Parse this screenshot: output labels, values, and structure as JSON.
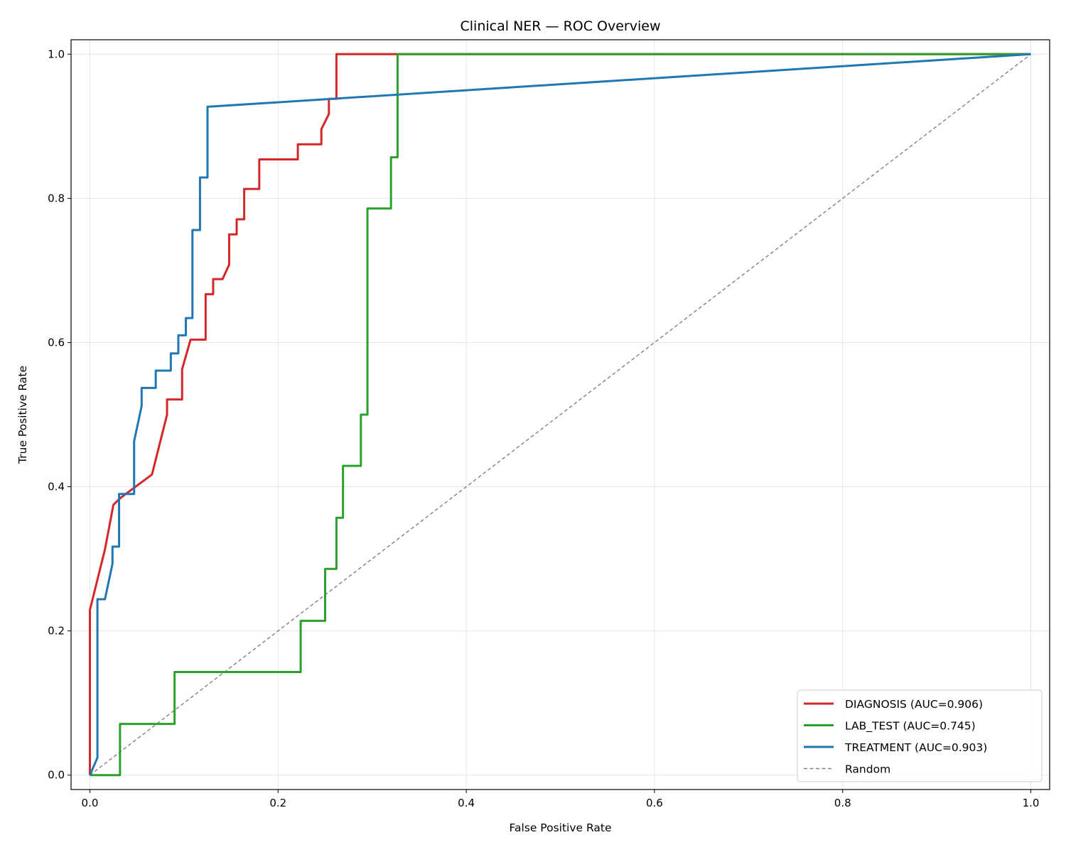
{
  "chart_data": {
    "type": "line",
    "title": "Clinical NER — ROC Overview",
    "xlabel": "False Positive Rate",
    "ylabel": "True Positive Rate",
    "xlim": [
      -0.02,
      1.02
    ],
    "ylim": [
      -0.02,
      1.02
    ],
    "xticks": [
      0.0,
      0.2,
      0.4,
      0.6,
      0.8,
      1.0
    ],
    "yticks": [
      0.0,
      0.2,
      0.4,
      0.6,
      0.8,
      1.0
    ],
    "tick_labels": [
      "0.0",
      "0.2",
      "0.4",
      "0.6",
      "0.8",
      "1.0"
    ],
    "grid": true,
    "legend_position": "lower-right",
    "series": [
      {
        "name": "DIAGNOSIS (AUC=0.906)",
        "color": "#d62728",
        "x": [
          0.0,
          0.0,
          0.016,
          0.025,
          0.033,
          0.066,
          0.082,
          0.082,
          0.098,
          0.098,
          0.107,
          0.123,
          0.123,
          0.131,
          0.131,
          0.141,
          0.148,
          0.148,
          0.156,
          0.156,
          0.164,
          0.164,
          0.18,
          0.18,
          0.221,
          0.221,
          0.246,
          0.246,
          0.254,
          0.254,
          0.262,
          0.262,
          1.0
        ],
        "y": [
          0.0,
          0.229,
          0.313,
          0.375,
          0.385,
          0.417,
          0.5,
          0.521,
          0.521,
          0.563,
          0.604,
          0.604,
          0.667,
          0.667,
          0.688,
          0.688,
          0.708,
          0.75,
          0.75,
          0.771,
          0.771,
          0.813,
          0.813,
          0.854,
          0.854,
          0.875,
          0.875,
          0.896,
          0.917,
          0.938,
          0.938,
          1.0,
          1.0
        ]
      },
      {
        "name": "LAB_TEST (AUC=0.745)",
        "color": "#2ca02c",
        "x": [
          0.0,
          0.032,
          0.032,
          0.09,
          0.09,
          0.224,
          0.224,
          0.25,
          0.25,
          0.262,
          0.262,
          0.269,
          0.269,
          0.288,
          0.288,
          0.295,
          0.295,
          0.32,
          0.32,
          0.327,
          0.327,
          1.0
        ],
        "y": [
          0.0,
          0.0,
          0.071,
          0.071,
          0.143,
          0.143,
          0.214,
          0.214,
          0.286,
          0.286,
          0.357,
          0.357,
          0.429,
          0.429,
          0.5,
          0.5,
          0.786,
          0.786,
          0.857,
          0.857,
          1.0,
          1.0
        ]
      },
      {
        "name": "TREATMENT (AUC=0.903)",
        "color": "#1f77b4",
        "x": [
          0.0,
          0.008,
          0.008,
          0.016,
          0.024,
          0.024,
          0.031,
          0.031,
          0.047,
          0.047,
          0.055,
          0.055,
          0.07,
          0.07,
          0.086,
          0.086,
          0.094,
          0.094,
          0.102,
          0.102,
          0.109,
          0.109,
          0.117,
          0.117,
          0.125,
          0.125,
          1.0
        ],
        "y": [
          0.0,
          0.024,
          0.244,
          0.244,
          0.293,
          0.317,
          0.317,
          0.39,
          0.39,
          0.463,
          0.512,
          0.537,
          0.537,
          0.561,
          0.561,
          0.585,
          0.585,
          0.61,
          0.61,
          0.634,
          0.634,
          0.756,
          0.756,
          0.829,
          0.829,
          0.927,
          1.0
        ]
      },
      {
        "name": "Random",
        "color": "#808080",
        "dashed": true,
        "x": [
          0.0,
          1.0
        ],
        "y": [
          0.0,
          1.0
        ]
      }
    ]
  }
}
